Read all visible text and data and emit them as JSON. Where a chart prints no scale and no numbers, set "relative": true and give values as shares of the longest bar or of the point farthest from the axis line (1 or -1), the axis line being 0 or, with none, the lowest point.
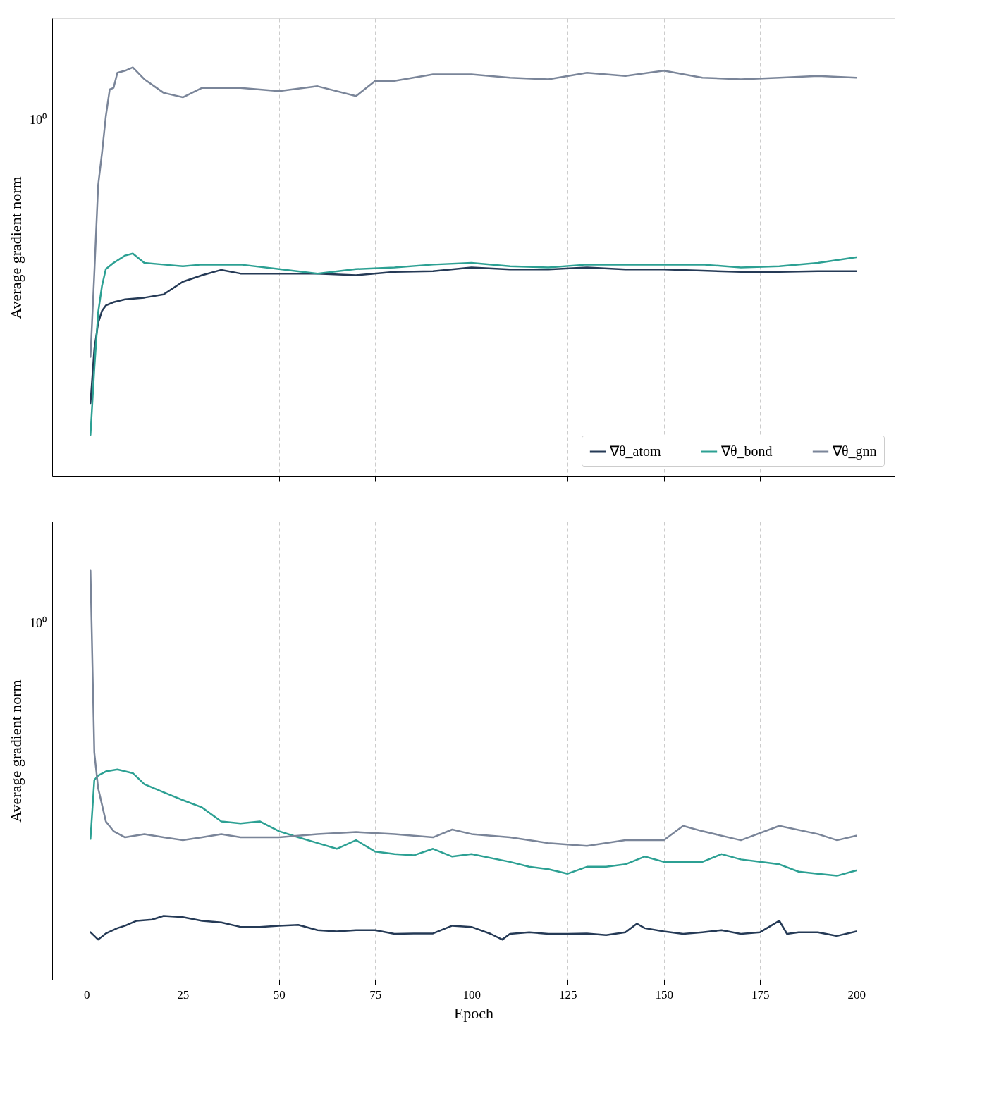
{
  "chart_data": [
    {
      "type": "line",
      "ylabel": "Average gradient norm",
      "xlim": [
        -8.95,
        209.95
      ],
      "xticks": [
        0,
        25,
        50,
        75,
        100,
        125,
        150,
        175,
        200
      ],
      "relative": true,
      "grid": "x",
      "legend": "bottom right",
      "tick_labels": false,
      "line_style": "solid",
      "marker": "none",
      "annotations": [
        "10⁰"
      ],
      "series": [
        {
          "name": "∇θ_atom",
          "color": "#253a56",
          "x": [
            1,
            2,
            3,
            4,
            5,
            7,
            10,
            15,
            20,
            25,
            30,
            35,
            40,
            50,
            60,
            70,
            80,
            90,
            100,
            110,
            120,
            130,
            140,
            150,
            160,
            170,
            180,
            190,
            200
          ],
          "values": [
            0.179,
            0.311,
            0.375,
            0.405,
            0.418,
            0.426,
            0.433,
            0.437,
            0.445,
            0.476,
            0.492,
            0.505,
            0.496,
            0.496,
            0.496,
            0.492,
            0.5,
            0.502,
            0.511,
            0.506,
            0.506,
            0.511,
            0.506,
            0.506,
            0.503,
            0.5,
            0.5,
            0.502,
            0.502
          ]
        },
        {
          "name": "∇θ_bond",
          "color": "#2ca093",
          "x": [
            1,
            2,
            3,
            4,
            5,
            7,
            10,
            12,
            15,
            20,
            25,
            30,
            40,
            50,
            60,
            70,
            80,
            90,
            100,
            110,
            120,
            130,
            140,
            150,
            160,
            170,
            180,
            190,
            200
          ],
          "values": [
            0.102,
            0.263,
            0.401,
            0.466,
            0.507,
            0.522,
            0.54,
            0.545,
            0.522,
            0.518,
            0.514,
            0.518,
            0.518,
            0.507,
            0.496,
            0.507,
            0.511,
            0.518,
            0.522,
            0.514,
            0.511,
            0.518,
            0.518,
            0.518,
            0.518,
            0.511,
            0.514,
            0.522,
            0.536
          ]
        },
        {
          "name": "∇θ_gnn",
          "color": "#7a8599",
          "x": [
            1,
            2,
            3,
            4,
            5,
            6,
            7,
            8,
            10,
            12,
            15,
            20,
            25,
            30,
            40,
            50,
            60,
            70,
            75,
            80,
            90,
            100,
            110,
            120,
            130,
            140,
            150,
            160,
            170,
            180,
            190,
            200
          ],
          "values": [
            0.292,
            0.496,
            0.712,
            0.791,
            0.881,
            0.946,
            0.95,
            0.987,
            0.992,
            1,
            0.971,
            0.938,
            0.927,
            0.95,
            0.95,
            0.942,
            0.954,
            0.93,
            0.967,
            0.967,
            0.983,
            0.983,
            0.975,
            0.971,
            0.987,
            0.979,
            0.992,
            0.975,
            0.971,
            0.975,
            0.979,
            0.975
          ]
        }
      ]
    },
    {
      "type": "line",
      "xlabel": "Epoch",
      "ylabel": "Average gradient norm",
      "xlim": [
        -8.95,
        209.95
      ],
      "xticks": [
        0,
        25,
        50,
        75,
        100,
        125,
        150,
        175,
        200
      ],
      "relative": true,
      "grid": "x",
      "tick_labels": "x",
      "line_style": "solid",
      "marker": "none",
      "annotations": [
        "10⁰"
      ],
      "series": [
        {
          "color": "#253a56",
          "x": [
            1,
            3,
            5,
            8,
            10,
            13,
            17,
            20,
            25,
            30,
            35,
            40,
            45,
            50,
            55,
            60,
            65,
            70,
            75,
            80,
            85,
            90,
            95,
            100,
            105,
            108,
            110,
            115,
            120,
            125,
            130,
            135,
            140,
            143,
            145,
            150,
            155,
            160,
            165,
            170,
            175,
            180,
            182,
            185,
            190,
            195,
            200
          ],
          "values": [
            0.116,
            0.098,
            0.113,
            0.126,
            0.132,
            0.144,
            0.147,
            0.156,
            0.153,
            0.144,
            0.14,
            0.129,
            0.129,
            0.132,
            0.134,
            0.121,
            0.118,
            0.121,
            0.121,
            0.112,
            0.113,
            0.113,
            0.132,
            0.129,
            0.112,
            0.098,
            0.112,
            0.116,
            0.112,
            0.112,
            0.113,
            0.109,
            0.116,
            0.137,
            0.126,
            0.118,
            0.112,
            0.116,
            0.121,
            0.112,
            0.116,
            0.144,
            0.112,
            0.116,
            0.116,
            0.107,
            0.118
          ]
        },
        {
          "color": "#2ca093",
          "x": [
            1,
            2,
            3,
            5,
            8,
            12,
            15,
            20,
            25,
            30,
            35,
            40,
            45,
            50,
            55,
            60,
            65,
            70,
            75,
            80,
            85,
            90,
            95,
            100,
            110,
            115,
            120,
            125,
            130,
            135,
            140,
            145,
            150,
            155,
            160,
            165,
            170,
            175,
            180,
            185,
            190,
            195,
            200
          ],
          "values": [
            0.344,
            0.488,
            0.499,
            0.509,
            0.514,
            0.505,
            0.478,
            0.458,
            0.439,
            0.421,
            0.387,
            0.382,
            0.387,
            0.363,
            0.348,
            0.334,
            0.32,
            0.341,
            0.313,
            0.307,
            0.304,
            0.32,
            0.301,
            0.307,
            0.288,
            0.276,
            0.27,
            0.259,
            0.276,
            0.276,
            0.282,
            0.301,
            0.288,
            0.288,
            0.288,
            0.307,
            0.294,
            0.288,
            0.282,
            0.264,
            0.259,
            0.254,
            0.267
          ]
        },
        {
          "color": "#7a8599",
          "x": [
            1,
            2,
            3,
            5,
            7,
            10,
            15,
            20,
            25,
            30,
            35,
            40,
            50,
            55,
            60,
            70,
            80,
            90,
            95,
            100,
            110,
            120,
            130,
            140,
            150,
            155,
            160,
            170,
            180,
            190,
            195,
            200
          ],
          "values": [
            1,
            0.555,
            0.468,
            0.387,
            0.363,
            0.348,
            0.356,
            0.348,
            0.341,
            0.348,
            0.356,
            0.348,
            0.348,
            0.352,
            0.356,
            0.361,
            0.356,
            0.348,
            0.367,
            0.356,
            0.348,
            0.334,
            0.327,
            0.341,
            0.341,
            0.376,
            0.363,
            0.341,
            0.376,
            0.356,
            0.341,
            0.352
          ]
        }
      ]
    }
  ]
}
